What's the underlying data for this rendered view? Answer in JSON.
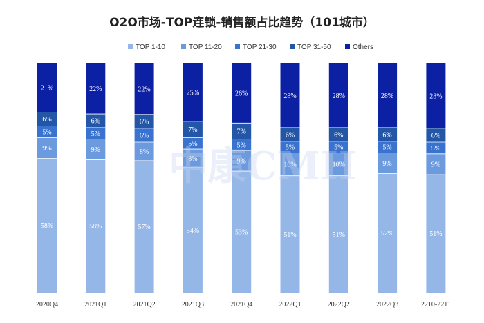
{
  "colors": {
    "TOP 1-10": "#94b7e8",
    "TOP 11-20": "#6c9ade",
    "TOP 21-30": "#3a73cf",
    "TOP 31-50": "#2456a8",
    "Others": "#0c20a4"
  },
  "chart_data": {
    "type": "bar",
    "stacked": true,
    "title": "O2O市场-TOP连锁-销售额占比趋势（101城市）",
    "xlabel": "",
    "ylabel": "",
    "ylim": [
      0,
      100
    ],
    "legend_position": "top",
    "grid": false,
    "categories": [
      "2020Q4",
      "2021Q1",
      "2021Q2",
      "2021Q3",
      "2021Q4",
      "2022Q1",
      "2022Q2",
      "2022Q3",
      "2210-2211"
    ],
    "series": [
      {
        "name": "TOP 1-10",
        "values": [
          58,
          58,
          57,
          54,
          53,
          51,
          51,
          52,
          51
        ]
      },
      {
        "name": "TOP 11-20",
        "values": [
          9,
          9,
          8,
          8,
          9,
          10,
          10,
          9,
          9
        ]
      },
      {
        "name": "TOP 21-30",
        "values": [
          5,
          5,
          6,
          5,
          5,
          5,
          5,
          5,
          5
        ]
      },
      {
        "name": "TOP 31-50",
        "values": [
          6,
          6,
          6,
          7,
          7,
          6,
          6,
          6,
          6
        ]
      },
      {
        "name": "Others",
        "values": [
          21,
          22,
          22,
          25,
          26,
          28,
          28,
          28,
          28
        ]
      }
    ]
  },
  "watermark": "中康CMH"
}
